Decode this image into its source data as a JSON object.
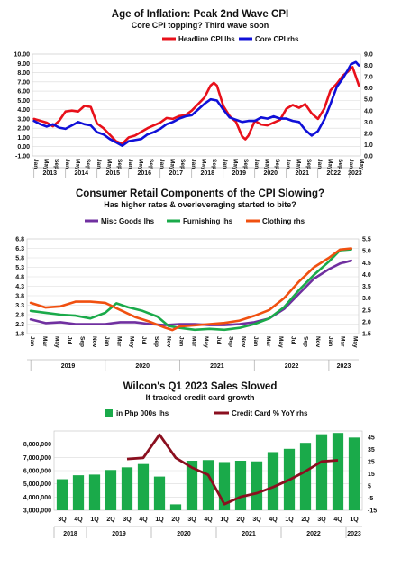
{
  "chart_data": [
    {
      "type": "line",
      "title": "Age of Inflation: Peak 2nd Wave CPI",
      "subtitle": "Core CPI topping? Third wave soon",
      "legend": "top-right",
      "x_months": [
        "Jan",
        "May",
        "Sep"
      ],
      "years": [
        "2013",
        "2014",
        "2015",
        "2016",
        "2017",
        "2018",
        "2019",
        "2020",
        "2021",
        "2022",
        "2023"
      ],
      "ylim_left": [
        -1.0,
        10.0
      ],
      "ylim_right": [
        0.0,
        9.0
      ],
      "yticks_left": [
        "-1.00",
        "0.00",
        "1.00",
        "2.00",
        "3.00",
        "4.00",
        "5.00",
        "6.00",
        "7.00",
        "8.00",
        "9.00",
        "10.00"
      ],
      "yticks_right": [
        "0.0",
        "1.0",
        "2.0",
        "3.0",
        "4.0",
        "5.0",
        "6.0",
        "7.0",
        "8.0",
        "9.0"
      ],
      "series": [
        {
          "name": "Headline CPI lhs",
          "axis": "left",
          "color": "#e8101a",
          "points": [
            [
              2013.0,
              3.0
            ],
            [
              2013.2,
              2.8
            ],
            [
              2013.4,
              2.6
            ],
            [
              2013.6,
              2.2
            ],
            [
              2013.8,
              2.8
            ],
            [
              2014.0,
              3.8
            ],
            [
              2014.2,
              3.9
            ],
            [
              2014.4,
              3.8
            ],
            [
              2014.6,
              4.4
            ],
            [
              2014.8,
              4.3
            ],
            [
              2015.0,
              2.5
            ],
            [
              2015.2,
              2.0
            ],
            [
              2015.4,
              1.3
            ],
            [
              2015.6,
              0.6
            ],
            [
              2015.8,
              0.3
            ],
            [
              2016.0,
              1.0
            ],
            [
              2016.2,
              1.2
            ],
            [
              2016.4,
              1.6
            ],
            [
              2016.6,
              2.0
            ],
            [
              2016.8,
              2.3
            ],
            [
              2017.0,
              2.6
            ],
            [
              2017.2,
              3.1
            ],
            [
              2017.4,
              3.0
            ],
            [
              2017.6,
              3.3
            ],
            [
              2017.8,
              3.4
            ],
            [
              2018.0,
              3.9
            ],
            [
              2018.2,
              4.6
            ],
            [
              2018.4,
              5.3
            ],
            [
              2018.6,
              6.6
            ],
            [
              2018.7,
              6.9
            ],
            [
              2018.8,
              6.6
            ],
            [
              2019.0,
              4.4
            ],
            [
              2019.2,
              3.3
            ],
            [
              2019.4,
              2.7
            ],
            [
              2019.6,
              1.1
            ],
            [
              2019.7,
              0.8
            ],
            [
              2019.8,
              1.2
            ],
            [
              2020.0,
              2.8
            ],
            [
              2020.2,
              2.4
            ],
            [
              2020.4,
              2.3
            ],
            [
              2020.6,
              2.6
            ],
            [
              2020.8,
              2.9
            ],
            [
              2021.0,
              4.1
            ],
            [
              2021.2,
              4.5
            ],
            [
              2021.4,
              4.2
            ],
            [
              2021.6,
              4.6
            ],
            [
              2021.8,
              3.6
            ],
            [
              2022.0,
              3.0
            ],
            [
              2022.2,
              4.1
            ],
            [
              2022.4,
              6.1
            ],
            [
              2022.6,
              6.8
            ],
            [
              2022.8,
              7.7
            ],
            [
              2022.95,
              8.1
            ],
            [
              2023.1,
              8.6
            ],
            [
              2023.2,
              7.6
            ],
            [
              2023.3,
              6.6
            ]
          ]
        },
        {
          "name": "Core CPI rhs",
          "axis": "right",
          "color": "#1010d8",
          "points": [
            [
              2013.0,
              3.1
            ],
            [
              2013.2,
              2.8
            ],
            [
              2013.4,
              2.6
            ],
            [
              2013.6,
              2.8
            ],
            [
              2013.8,
              2.5
            ],
            [
              2014.0,
              2.4
            ],
            [
              2014.2,
              2.7
            ],
            [
              2014.4,
              3.0
            ],
            [
              2014.6,
              2.8
            ],
            [
              2014.8,
              2.7
            ],
            [
              2015.0,
              2.1
            ],
            [
              2015.2,
              1.9
            ],
            [
              2015.4,
              1.5
            ],
            [
              2015.6,
              1.2
            ],
            [
              2015.8,
              0.9
            ],
            [
              2016.0,
              1.3
            ],
            [
              2016.2,
              1.4
            ],
            [
              2016.4,
              1.5
            ],
            [
              2016.6,
              1.9
            ],
            [
              2016.8,
              2.1
            ],
            [
              2017.0,
              2.4
            ],
            [
              2017.2,
              2.8
            ],
            [
              2017.4,
              3.0
            ],
            [
              2017.6,
              3.3
            ],
            [
              2017.8,
              3.5
            ],
            [
              2018.0,
              3.6
            ],
            [
              2018.2,
              4.1
            ],
            [
              2018.4,
              4.6
            ],
            [
              2018.6,
              5.0
            ],
            [
              2018.8,
              4.9
            ],
            [
              2019.0,
              4.1
            ],
            [
              2019.2,
              3.4
            ],
            [
              2019.4,
              3.2
            ],
            [
              2019.6,
              3.0
            ],
            [
              2019.8,
              3.1
            ],
            [
              2020.0,
              3.1
            ],
            [
              2020.2,
              3.4
            ],
            [
              2020.4,
              3.3
            ],
            [
              2020.6,
              3.5
            ],
            [
              2020.8,
              3.3
            ],
            [
              2021.0,
              3.3
            ],
            [
              2021.2,
              3.1
            ],
            [
              2021.4,
              3.0
            ],
            [
              2021.6,
              2.3
            ],
            [
              2021.8,
              1.8
            ],
            [
              2022.0,
              2.2
            ],
            [
              2022.2,
              3.2
            ],
            [
              2022.4,
              4.6
            ],
            [
              2022.6,
              6.1
            ],
            [
              2022.8,
              6.9
            ],
            [
              2022.95,
              7.6
            ],
            [
              2023.05,
              8.1
            ],
            [
              2023.2,
              8.3
            ],
            [
              2023.3,
              8.0
            ]
          ]
        }
      ]
    },
    {
      "type": "line",
      "title": "Consumer Retail Components of the CPI Slowing?",
      "subtitle": "Has higher rates & overleveraging started to bite?",
      "legend": "top",
      "x_months": [
        "Jan",
        "Mar",
        "May",
        "Jul",
        "Sep",
        "Nov"
      ],
      "years": [
        "2019",
        "2020",
        "2021",
        "2022",
        "2023"
      ],
      "ylim_left": [
        1.8,
        6.8
      ],
      "ylim_right": [
        1.5,
        5.5
      ],
      "yticks_left": [
        "1.8",
        "2.3",
        "2.8",
        "3.3",
        "3.8",
        "4.3",
        "4.8",
        "5.3",
        "5.8",
        "6.3",
        "6.8"
      ],
      "yticks_right": [
        "1.5",
        "2.0",
        "2.5",
        "3.0",
        "3.5",
        "4.0",
        "4.5",
        "5.0",
        "5.5"
      ],
      "series": [
        {
          "name": "Misc Goods lhs",
          "axis": "left",
          "color": "#7030a0",
          "points": [
            [
              2019.0,
              2.55
            ],
            [
              2019.2,
              2.35
            ],
            [
              2019.4,
              2.4
            ],
            [
              2019.6,
              2.3
            ],
            [
              2019.8,
              2.3
            ],
            [
              2020.0,
              2.3
            ],
            [
              2020.2,
              2.4
            ],
            [
              2020.4,
              2.4
            ],
            [
              2020.6,
              2.3
            ],
            [
              2020.8,
              2.25
            ],
            [
              2021.0,
              2.3
            ],
            [
              2021.2,
              2.3
            ],
            [
              2021.4,
              2.25
            ],
            [
              2021.6,
              2.25
            ],
            [
              2021.8,
              2.3
            ],
            [
              2022.0,
              2.4
            ],
            [
              2022.2,
              2.6
            ],
            [
              2022.4,
              3.1
            ],
            [
              2022.6,
              3.9
            ],
            [
              2022.8,
              4.7
            ],
            [
              2023.0,
              5.2
            ],
            [
              2023.15,
              5.5
            ],
            [
              2023.3,
              5.65
            ]
          ]
        },
        {
          "name": "Furnishing lhs",
          "axis": "left",
          "color": "#1aaa4a",
          "points": [
            [
              2019.0,
              3.0
            ],
            [
              2019.2,
              2.9
            ],
            [
              2019.4,
              2.8
            ],
            [
              2019.6,
              2.75
            ],
            [
              2019.8,
              2.6
            ],
            [
              2020.0,
              2.9
            ],
            [
              2020.15,
              3.4
            ],
            [
              2020.3,
              3.2
            ],
            [
              2020.5,
              3.0
            ],
            [
              2020.7,
              2.7
            ],
            [
              2020.85,
              2.2
            ],
            [
              2021.0,
              2.1
            ],
            [
              2021.2,
              2.0
            ],
            [
              2021.4,
              2.05
            ],
            [
              2021.6,
              2.0
            ],
            [
              2021.8,
              2.1
            ],
            [
              2022.0,
              2.3
            ],
            [
              2022.2,
              2.6
            ],
            [
              2022.4,
              3.2
            ],
            [
              2022.6,
              4.1
            ],
            [
              2022.8,
              4.9
            ],
            [
              2023.0,
              5.6
            ],
            [
              2023.15,
              6.2
            ],
            [
              2023.3,
              6.25
            ]
          ]
        },
        {
          "name": "Clothing rhs",
          "axis": "right",
          "color": "#f05010",
          "points": [
            [
              2019.0,
              2.8
            ],
            [
              2019.2,
              2.6
            ],
            [
              2019.4,
              2.65
            ],
            [
              2019.6,
              2.85
            ],
            [
              2019.8,
              2.85
            ],
            [
              2020.0,
              2.8
            ],
            [
              2020.2,
              2.5
            ],
            [
              2020.4,
              2.2
            ],
            [
              2020.6,
              2.0
            ],
            [
              2020.8,
              1.75
            ],
            [
              2020.9,
              1.65
            ],
            [
              2021.0,
              1.8
            ],
            [
              2021.2,
              1.85
            ],
            [
              2021.4,
              1.9
            ],
            [
              2021.6,
              1.95
            ],
            [
              2021.8,
              2.05
            ],
            [
              2022.0,
              2.25
            ],
            [
              2022.2,
              2.5
            ],
            [
              2022.4,
              3.0
            ],
            [
              2022.6,
              3.7
            ],
            [
              2022.8,
              4.3
            ],
            [
              2023.0,
              4.7
            ],
            [
              2023.15,
              5.05
            ],
            [
              2023.3,
              5.1
            ]
          ]
        }
      ]
    },
    {
      "type": "bar+line",
      "title": "Wilcon's Q1 2023 Sales Slowed",
      "subtitle": "It tracked credit card growth",
      "legend": "top",
      "categories": [
        "3Q",
        "4Q",
        "1Q",
        "2Q",
        "3Q",
        "4Q",
        "1Q",
        "2Q",
        "3Q",
        "4Q",
        "1Q",
        "2Q",
        "3Q",
        "4Q",
        "1Q",
        "2Q",
        "3Q",
        "4Q",
        "1Q"
      ],
      "years": [
        "2018",
        "2019",
        "2020",
        "2021",
        "2022",
        "2023"
      ],
      "ylim_left": [
        3000000,
        9000000
      ],
      "ylim_right": [
        -15,
        50
      ],
      "yticks_left": [
        "3,000,000",
        "4,000,000",
        "5,000,000",
        "6,000,000",
        "7,000,000",
        "8,000,000"
      ],
      "yticks_right": [
        "-15",
        "-5",
        "5",
        "15",
        "25",
        "35",
        "45"
      ],
      "series": [
        {
          "name": "in Php 000s lhs",
          "axis": "left",
          "color": "#1aaa4a",
          "values": [
            5350000,
            5650000,
            5700000,
            6050000,
            6250000,
            6500000,
            5550000,
            3450000,
            6750000,
            6800000,
            6650000,
            6750000,
            6700000,
            7400000,
            7650000,
            8100000,
            8750000,
            8850000,
            8500000
          ]
        },
        {
          "name": "Credit Card % YoY rhs",
          "axis": "right",
          "color": "#8b0f1f",
          "values": [
            null,
            null,
            null,
            null,
            27,
            28,
            47,
            28,
            20,
            14,
            -10,
            -4,
            -1,
            4,
            10,
            17,
            25,
            26,
            null
          ]
        }
      ]
    }
  ]
}
